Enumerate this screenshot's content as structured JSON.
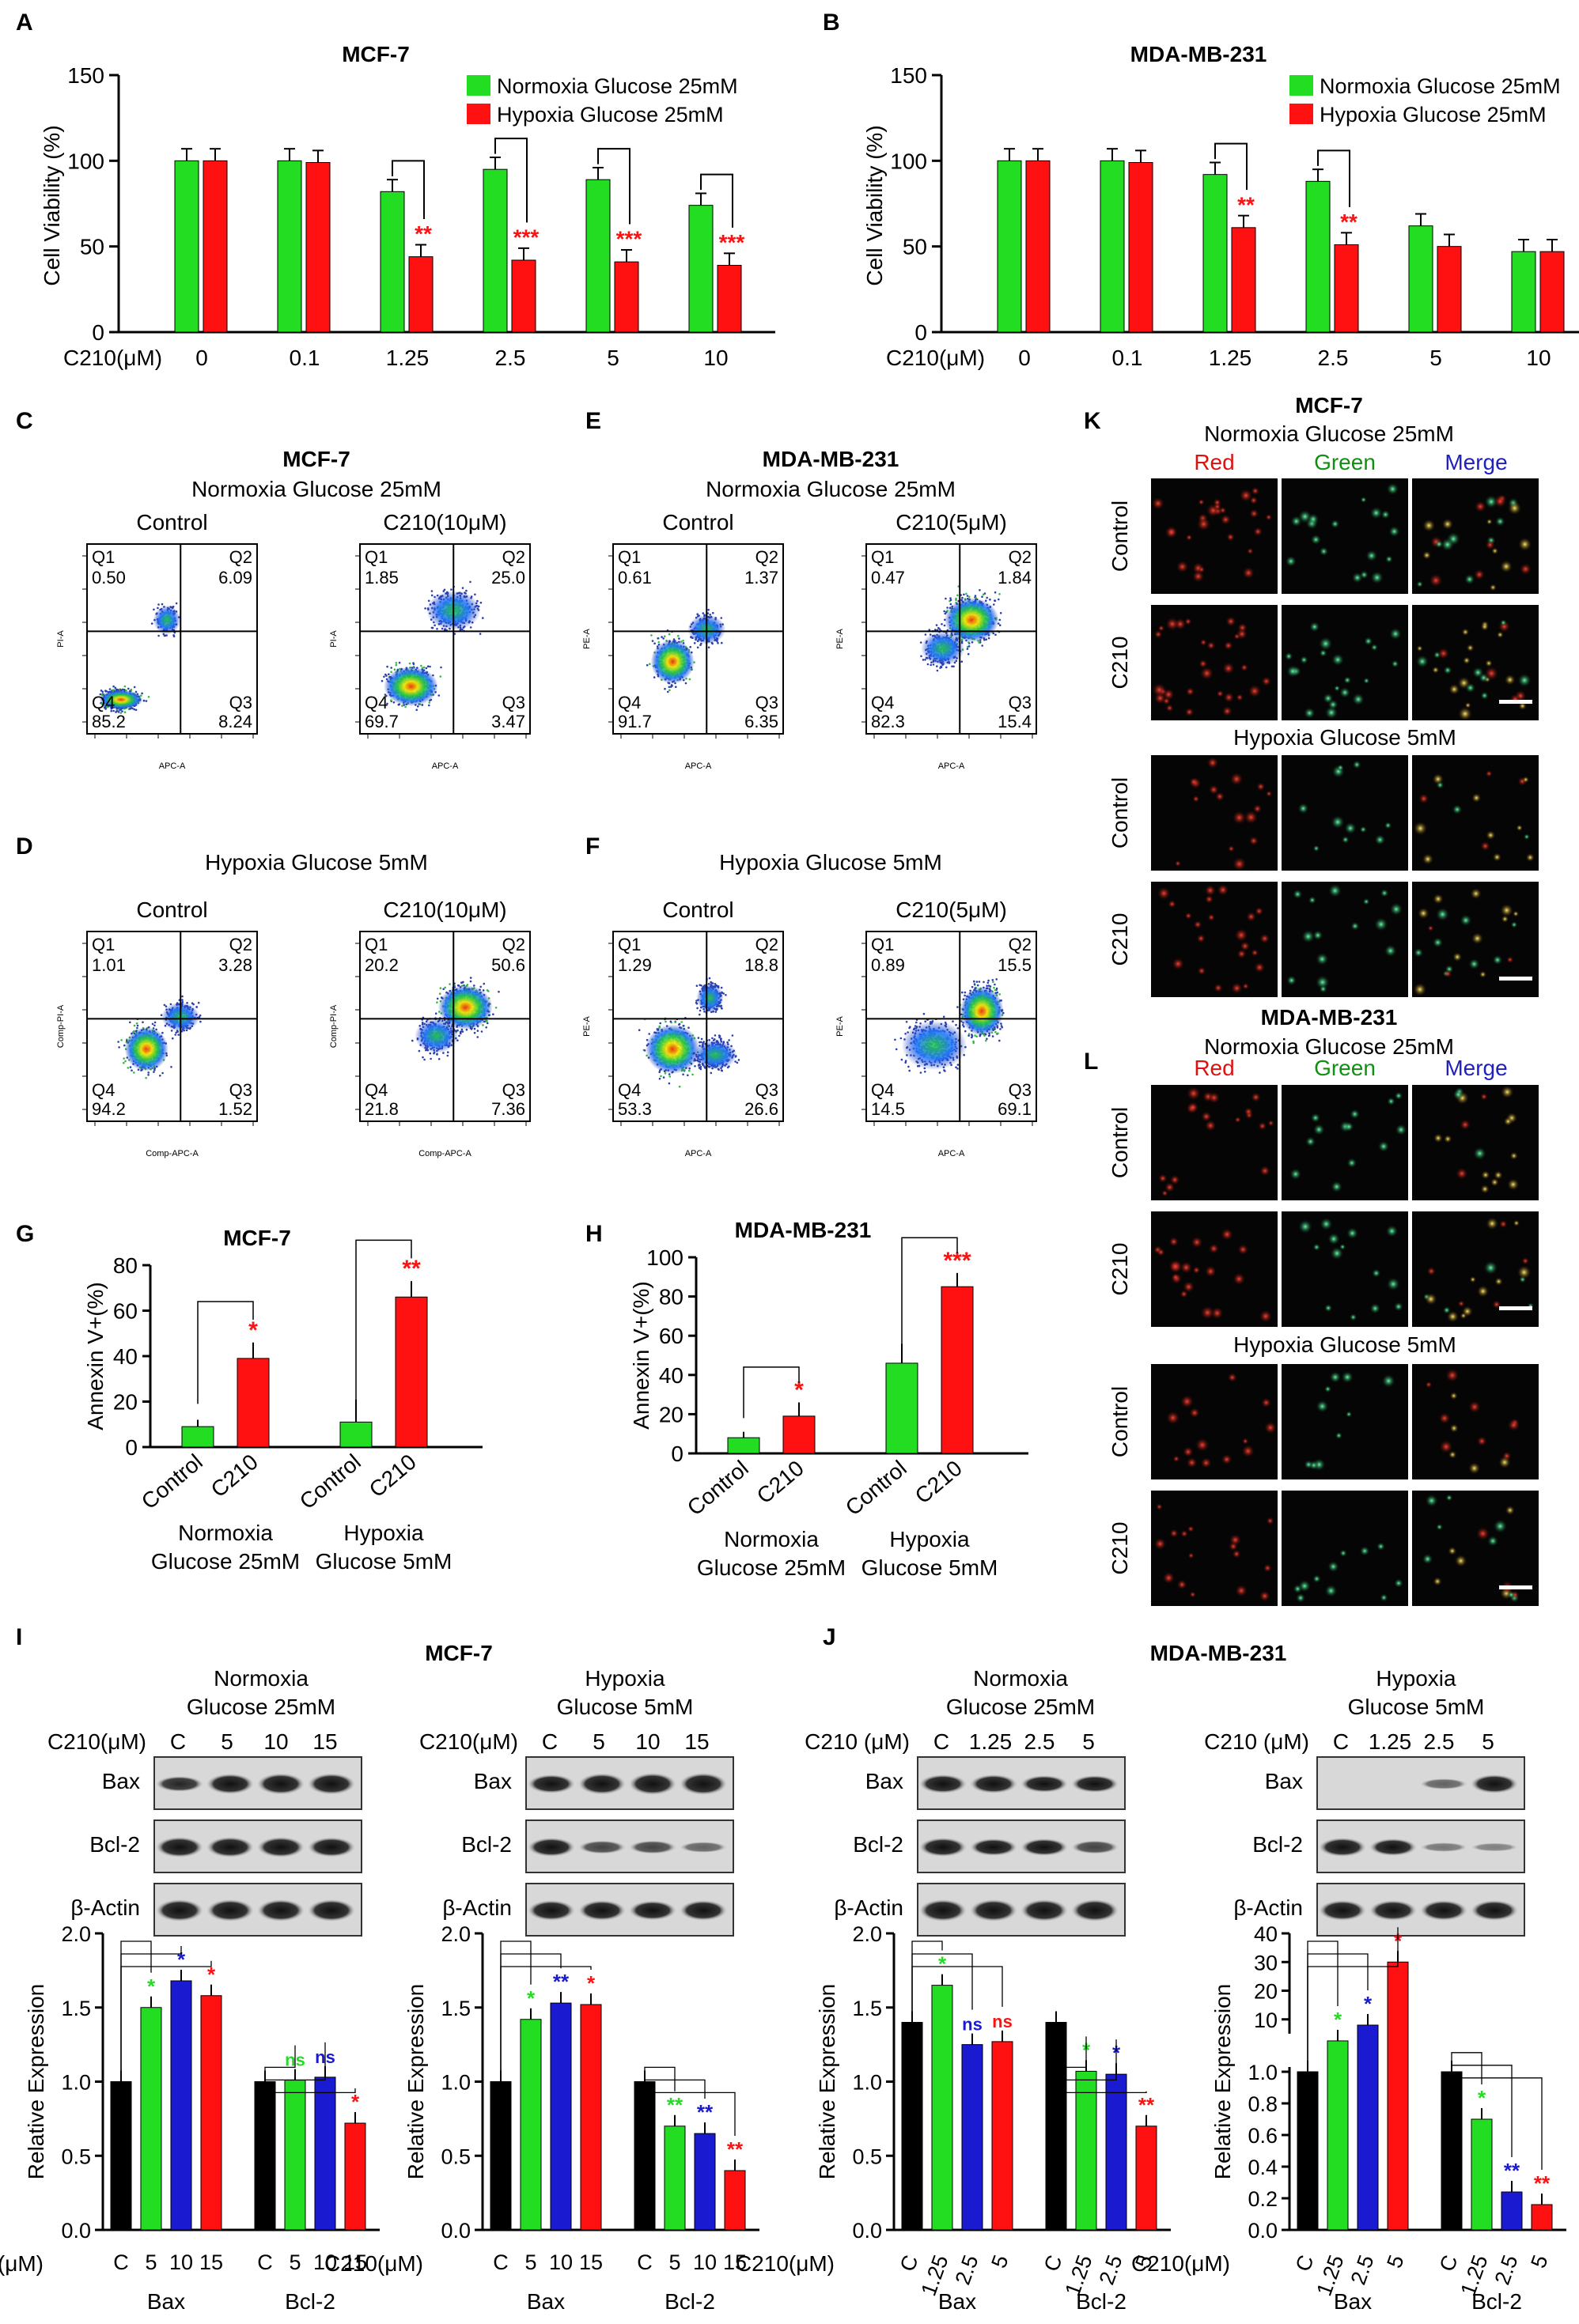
{
  "panel_letters": {
    "A": "A",
    "B": "B",
    "C": "C",
    "D": "D",
    "E": "E",
    "F": "F",
    "G": "G",
    "H": "H",
    "I": "I",
    "J": "J",
    "K": "K",
    "L": "L"
  },
  "common": {
    "c210_um": "C210(μM)",
    "c210_um_sp": "C210 (μM)",
    "control": "Control",
    "c210": "C210",
    "normoxia_25": "Normoxia Glucose 25mM",
    "hypoxia_25": "Hypoxia Glucose 25mM",
    "hypoxia_5": "Hypoxia Glucose 5mM",
    "normoxia": "Normoxia",
    "hypoxia": "Hypoxia",
    "glucose_25": "Glucose 25mM",
    "glucose_5": "Glucose 5mM",
    "mcf7": "MCF-7",
    "mda": "MDA-MB-231",
    "red": "Red",
    "green": "Green",
    "merge": "Merge",
    "bax": "Bax",
    "bcl2": "Bcl-2",
    "actin": "β-Actin",
    "rel_expr": "Relative Expression",
    "annexin": "Annexin V+(%)",
    "viability": "Cell Viability (%)",
    "c": "C"
  },
  "flow": {
    "C_control": {
      "q1": "0.50",
      "q2": "6.09",
      "q3": "8.24",
      "q4": "85.2"
    },
    "C_treated": {
      "q1": "1.85",
      "q2": "25.0",
      "q3": "3.47",
      "q4": "69.7",
      "title": "C210(10μM)"
    },
    "D_control": {
      "q1": "1.01",
      "q2": "3.28",
      "q3": "1.52",
      "q4": "94.2"
    },
    "D_treated": {
      "q1": "20.2",
      "q2": "50.6",
      "q3": "7.36",
      "q4": "21.8",
      "title": "C210(10μM)"
    },
    "E_control": {
      "q1": "0.61",
      "q2": "1.37",
      "q3": "6.35",
      "q4": "91.7"
    },
    "E_treated": {
      "q1": "0.47",
      "q2": "1.84",
      "q3": "15.4",
      "q4": "82.3",
      "title": "C210(5μM)"
    },
    "F_control": {
      "q1": "1.29",
      "q2": "18.8",
      "q3": "26.6",
      "q4": "53.3"
    },
    "F_treated": {
      "q1": "0.89",
      "q2": "15.5",
      "q3": "69.1",
      "q4": "14.5",
      "title": "C210(5μM)"
    },
    "axis_x_apc": "APC-A",
    "axis_y_pi": "PI-A",
    "axis_x_comp": "Comp-APC-A",
    "axis_y_comp": "Comp-PI-A",
    "axis_y_pe": "PE-A"
  },
  "blots": {
    "I_left_conc": [
      "C",
      "5",
      "10",
      "15"
    ],
    "I_right_conc": [
      "C",
      "5",
      "10",
      "15"
    ],
    "J_left_conc": [
      "C",
      "1.25",
      "2.5",
      "5"
    ],
    "J_right_conc": [
      "C",
      "1.25",
      "2.5",
      "5"
    ]
  },
  "chart_data": [
    {
      "id": "A",
      "type": "bar",
      "title": "MCF-7",
      "categories": [
        "0",
        "0.1",
        "1.25",
        "2.5",
        "5",
        "10"
      ],
      "series": [
        {
          "name": "Normoxia Glucose 25mM",
          "color": "#22dd22",
          "values": [
            100,
            100,
            82,
            95,
            89,
            74
          ]
        },
        {
          "name": "Hypoxia Glucose 25mM",
          "color": "#ff1111",
          "values": [
            100,
            99,
            44,
            42,
            41,
            39
          ]
        }
      ],
      "ylabel": "Cell Viability (%)",
      "xlabel": "C210(μM)",
      "ylim": [
        0,
        150
      ],
      "yticks": [
        0,
        50,
        100,
        150
      ],
      "annotations": [
        "",
        "",
        "**",
        "***",
        "***",
        "***"
      ]
    },
    {
      "id": "B",
      "type": "bar",
      "title": "MDA-MB-231",
      "categories": [
        "0",
        "0.1",
        "1.25",
        "2.5",
        "5",
        "10"
      ],
      "series": [
        {
          "name": "Normoxia Glucose 25mM",
          "color": "#22dd22",
          "values": [
            100,
            100,
            92,
            88,
            62,
            47
          ]
        },
        {
          "name": "Hypoxia Glucose 25mM",
          "color": "#ff1111",
          "values": [
            100,
            99,
            61,
            51,
            50,
            47
          ]
        }
      ],
      "ylabel": "Cell Viability (%)",
      "xlabel": "C210(μM)",
      "ylim": [
        0,
        150
      ],
      "yticks": [
        0,
        50,
        100,
        150
      ],
      "annotations": [
        "",
        "",
        "**",
        "**",
        "",
        ""
      ]
    },
    {
      "id": "G",
      "type": "bar",
      "title": "MCF-7",
      "categories": [
        "Control",
        "C210",
        "Control",
        "C210"
      ],
      "values": [
        9,
        39,
        11,
        66
      ],
      "colors": [
        "#22dd22",
        "#ff1111",
        "#22dd22",
        "#ff1111"
      ],
      "groups": [
        "Normoxia Glucose 25mM",
        "Hypoxia Glucose 5mM"
      ],
      "ylabel": "Annexin V+(%)",
      "ylim": [
        0,
        80
      ],
      "yticks": [
        0,
        20,
        40,
        60,
        80
      ],
      "annotations": [
        "",
        "*",
        "",
        "**"
      ]
    },
    {
      "id": "H",
      "type": "bar",
      "title": "MDA-MB-231",
      "categories": [
        "Control",
        "C210",
        "Control",
        "C210"
      ],
      "values": [
        8,
        19,
        46,
        85
      ],
      "colors": [
        "#22dd22",
        "#ff1111",
        "#22dd22",
        "#ff1111"
      ],
      "groups": [
        "Normoxia Glucose 25mM",
        "Hypoxia Glucose 5mM"
      ],
      "ylabel": "Annexin V+(%)",
      "ylim": [
        0,
        100
      ],
      "yticks": [
        0,
        20,
        40,
        60,
        80,
        100
      ],
      "annotations": [
        "",
        "*",
        "",
        "***"
      ]
    },
    {
      "id": "I1",
      "type": "bar",
      "categories": [
        "C",
        "5",
        "10",
        "15",
        "C",
        "5",
        "10",
        "15"
      ],
      "values": [
        1.0,
        1.5,
        1.68,
        1.58,
        1.0,
        1.01,
        1.03,
        0.72
      ],
      "groups": [
        "Bax",
        "Bcl-2"
      ],
      "ylabel": "Relative Expression",
      "ylim": [
        0,
        2.0
      ],
      "yticks": [
        0,
        0.5,
        1.0,
        1.5,
        2.0
      ],
      "annotations": [
        "",
        "*",
        "*",
        "*",
        "",
        "ns",
        "ns",
        "*"
      ]
    },
    {
      "id": "I2",
      "type": "bar",
      "categories": [
        "C",
        "5",
        "10",
        "15",
        "C",
        "5",
        "10",
        "15"
      ],
      "values": [
        1.0,
        1.42,
        1.53,
        1.52,
        1.0,
        0.7,
        0.65,
        0.4
      ],
      "groups": [
        "Bax",
        "Bcl-2"
      ],
      "ylabel": "Relative Expression",
      "ylim": [
        0,
        2.0
      ],
      "yticks": [
        0,
        0.5,
        1.0,
        1.5,
        2.0
      ],
      "annotations": [
        "",
        "*",
        "**",
        "*",
        "",
        "**",
        "**",
        "**"
      ]
    },
    {
      "id": "J1",
      "type": "bar",
      "categories": [
        "C",
        "1.25",
        "2.5",
        "5",
        "C",
        "1.25",
        "2.5",
        "5"
      ],
      "values": [
        1.4,
        1.65,
        1.25,
        1.27,
        1.4,
        1.07,
        1.05,
        0.7
      ],
      "groups": [
        "Bax",
        "Bcl-2"
      ],
      "ylabel": "Relative Expression",
      "ylim": [
        0,
        2.0
      ],
      "yticks": [
        0,
        0.5,
        1.0,
        1.5,
        2.0
      ],
      "annotations": [
        "",
        "*",
        "ns",
        "ns",
        "",
        "*",
        "*",
        "**"
      ]
    },
    {
      "id": "J2",
      "type": "bar",
      "categories": [
        "C",
        "1.25",
        "2.5",
        "5",
        "C",
        "1.25",
        "2.5",
        "5"
      ],
      "values": [
        1.0,
        2.5,
        8.0,
        30.0,
        1.0,
        0.7,
        0.24,
        0.16
      ],
      "groups": [
        "Bax",
        "Bcl-2"
      ],
      "ylabel": "Relative Expression",
      "yticks_lower": [
        0,
        0.2,
        0.4,
        0.6,
        0.8,
        1.0
      ],
      "yticks_upper": [
        10,
        20,
        30,
        40
      ],
      "annotations": [
        "",
        "*",
        "*",
        "*",
        "",
        "*",
        "**",
        "**"
      ]
    }
  ]
}
